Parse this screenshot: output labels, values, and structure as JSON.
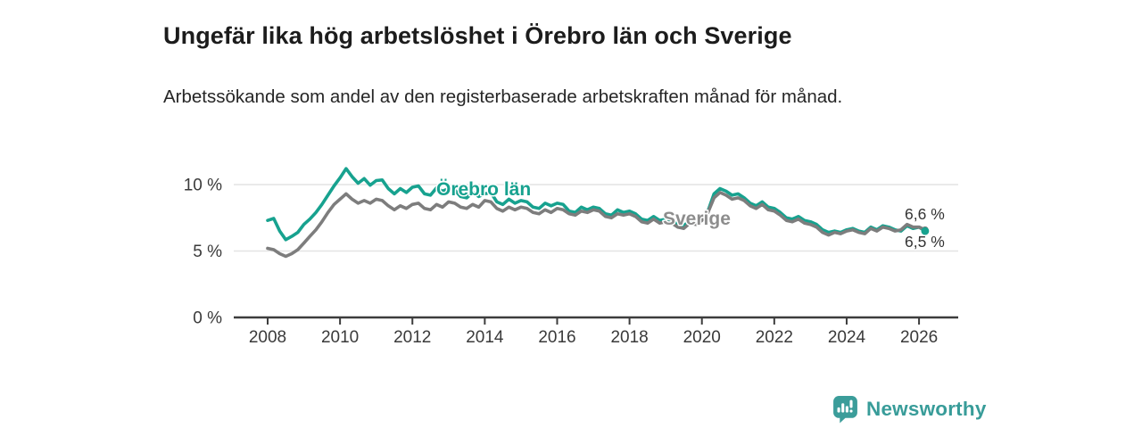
{
  "chart_data": {
    "type": "line",
    "title": "Ungefär lika hög arbetslöshet i Örebro län och Sverige",
    "subtitle": "Arbetssökande som andel av den registerbaserade arbetskraften månad för månad.",
    "xlabel": "",
    "ylabel": "",
    "ylim": [
      0,
      11.5
    ],
    "x_range_years": [
      2008.0,
      2026.17
    ],
    "grid": "horizontal",
    "legend_position": "inline-labels",
    "gridline_color": "#e4e4e4",
    "axis_color": "#3d3d3d",
    "y_ticks": [
      {
        "value": 0,
        "label": "0 %"
      },
      {
        "value": 5,
        "label": "5 %"
      },
      {
        "value": 10,
        "label": "10 %"
      }
    ],
    "x_ticks": [
      2008,
      2010,
      2012,
      2014,
      2016,
      2018,
      2020,
      2022,
      2024,
      2026
    ],
    "x_start": 2008.0,
    "x_step_years": 0.16667,
    "series": [
      {
        "id": "orebro-lan",
        "name": "Örebro län",
        "color": "#17a28f",
        "label_color": "#17a28f",
        "end_label": "6,5 %",
        "values": [
          7.3,
          7.45,
          6.5,
          5.85,
          6.1,
          6.4,
          7.0,
          7.4,
          7.9,
          8.5,
          9.2,
          9.9,
          10.5,
          11.2,
          10.6,
          10.1,
          10.45,
          9.95,
          10.3,
          10.35,
          9.7,
          9.3,
          9.7,
          9.4,
          9.8,
          9.9,
          9.3,
          9.2,
          9.75,
          9.5,
          9.7,
          9.6,
          9.1,
          9.0,
          9.4,
          9.1,
          9.3,
          9.4,
          8.7,
          8.5,
          8.9,
          8.6,
          8.8,
          8.7,
          8.3,
          8.2,
          8.6,
          8.4,
          8.6,
          8.5,
          8.0,
          7.9,
          8.3,
          8.1,
          8.3,
          8.2,
          7.8,
          7.7,
          8.1,
          7.9,
          8.0,
          7.8,
          7.4,
          7.3,
          7.6,
          7.3,
          7.4,
          7.3,
          7.0,
          6.9,
          7.3,
          7.2,
          7.4,
          8.0,
          9.3,
          9.7,
          9.5,
          9.2,
          9.3,
          9.0,
          8.6,
          8.4,
          8.7,
          8.3,
          8.2,
          7.9,
          7.5,
          7.4,
          7.6,
          7.3,
          7.2,
          7.0,
          6.6,
          6.4,
          6.5,
          6.4,
          6.6,
          6.7,
          6.5,
          6.4,
          6.8,
          6.6,
          6.9,
          6.8,
          6.6,
          6.5,
          6.9,
          6.7,
          6.8,
          6.5
        ]
      },
      {
        "id": "sverige",
        "name": "Sverige",
        "color": "#7d7d7d",
        "label_color": "#8d8d8d",
        "end_label": "6,6 %",
        "values": [
          5.2,
          5.1,
          4.8,
          4.6,
          4.8,
          5.1,
          5.6,
          6.1,
          6.6,
          7.2,
          7.9,
          8.5,
          8.9,
          9.3,
          8.9,
          8.6,
          8.8,
          8.6,
          8.9,
          8.8,
          8.4,
          8.1,
          8.4,
          8.2,
          8.5,
          8.6,
          8.2,
          8.1,
          8.5,
          8.3,
          8.7,
          8.6,
          8.3,
          8.2,
          8.5,
          8.3,
          8.8,
          8.7,
          8.2,
          8.0,
          8.3,
          8.1,
          8.3,
          8.2,
          7.9,
          7.8,
          8.1,
          7.9,
          8.2,
          8.1,
          7.8,
          7.7,
          8.0,
          7.9,
          8.1,
          8.0,
          7.6,
          7.5,
          7.8,
          7.7,
          7.8,
          7.6,
          7.2,
          7.1,
          7.4,
          7.1,
          7.2,
          7.1,
          6.8,
          6.7,
          7.1,
          7.0,
          7.3,
          7.9,
          9.0,
          9.4,
          9.2,
          8.9,
          9.0,
          8.8,
          8.4,
          8.2,
          8.5,
          8.1,
          8.0,
          7.7,
          7.3,
          7.2,
          7.4,
          7.1,
          7.0,
          6.8,
          6.4,
          6.2,
          6.4,
          6.3,
          6.5,
          6.6,
          6.4,
          6.3,
          6.7,
          6.5,
          6.8,
          6.7,
          6.5,
          6.6,
          7.0,
          6.8,
          6.8,
          6.6
        ]
      }
    ]
  },
  "footer": {
    "brand": "Newsworthy",
    "brand_color": "#389c99"
  }
}
